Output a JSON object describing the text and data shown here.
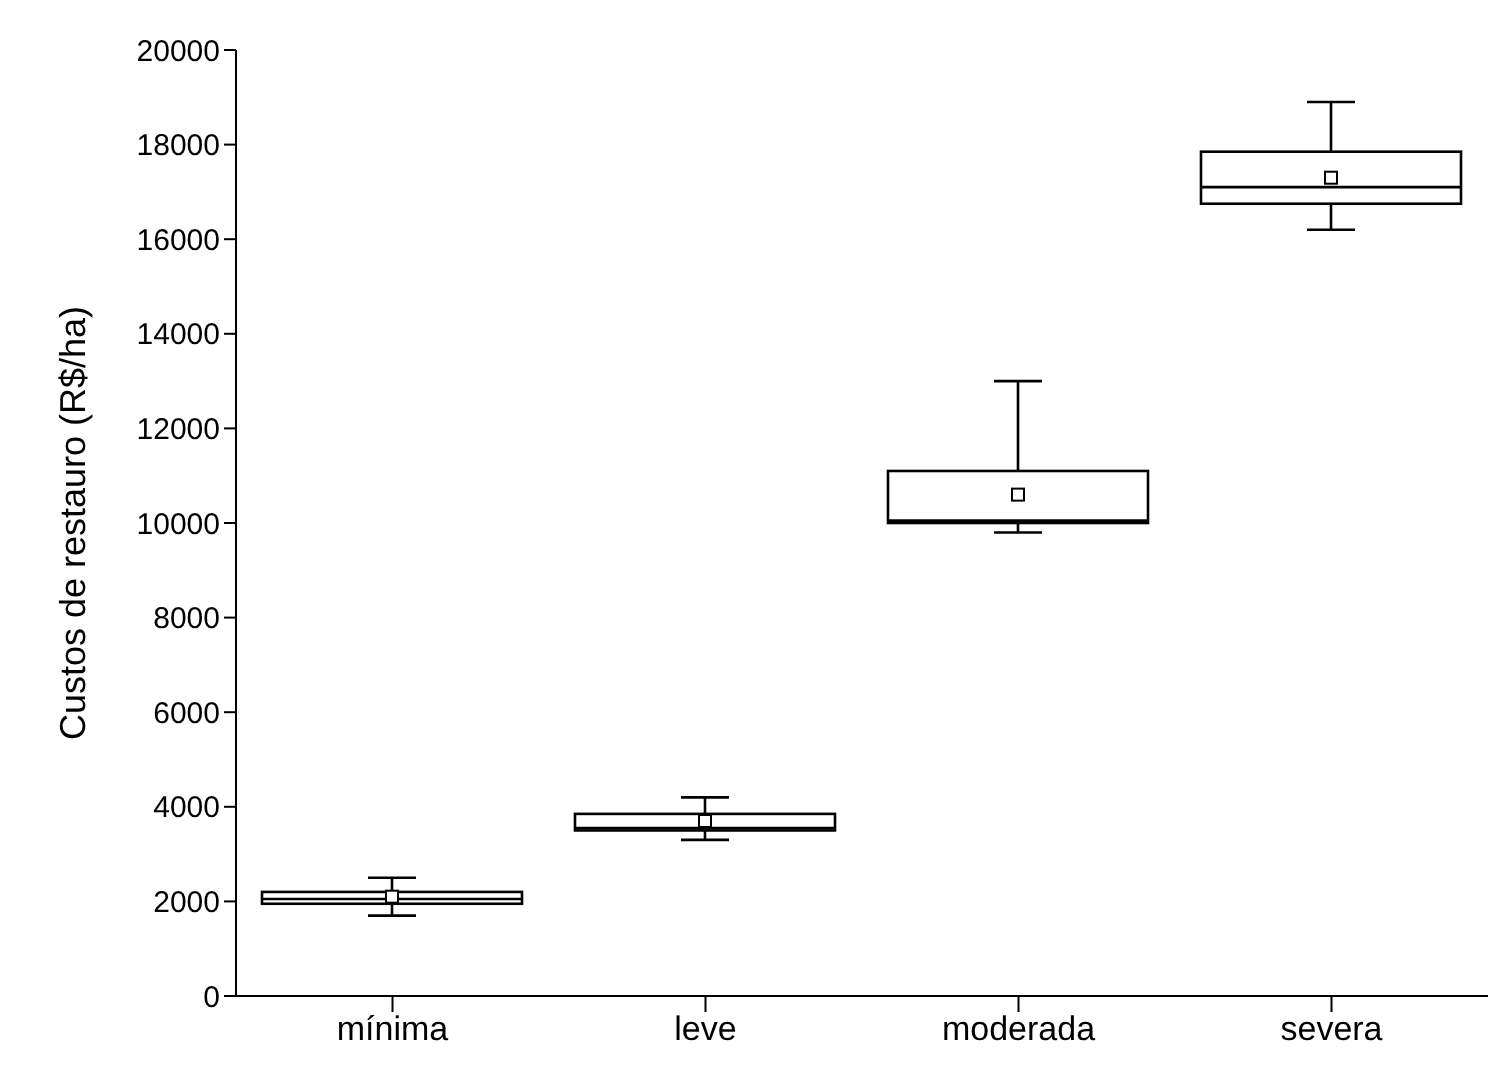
{
  "chart_data": {
    "type": "box",
    "ylabel": "Custos de restauro (R$/ha)",
    "categories": [
      "mínima",
      "leve",
      "moderada",
      "severa"
    ],
    "boxes": [
      {
        "low": 1700,
        "q1": 1950,
        "median": 2050,
        "q3": 2200,
        "high": 2500,
        "mean": 2100
      },
      {
        "low": 3300,
        "q1": 3500,
        "median": 3550,
        "q3": 3850,
        "high": 4200,
        "mean": 3700
      },
      {
        "low": 9800,
        "q1": 10000,
        "median": 10050,
        "q3": 11100,
        "high": 13000,
        "mean": 10600
      },
      {
        "low": 16200,
        "q1": 16750,
        "median": 17100,
        "q3": 17850,
        "high": 18900,
        "mean": 17300
      }
    ],
    "color": "#000000",
    "ylim": [
      0,
      20000
    ],
    "yticks": [
      0,
      2000,
      4000,
      6000,
      8000,
      10000,
      12000,
      14000,
      16000,
      18000,
      20000
    ],
    "grid": false,
    "legend": false
  }
}
